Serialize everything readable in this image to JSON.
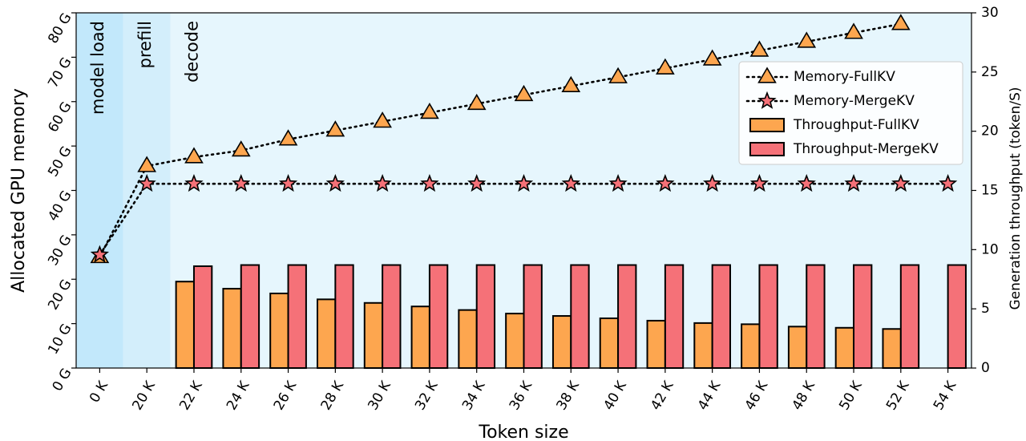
{
  "chart_data": {
    "type": "bar+line",
    "xlabel": "Token size",
    "ylabel_left": "Allocated GPU memory",
    "ylabel_right": "Generation throughput (token/S)",
    "categories": [
      "0 K",
      "20 K",
      "22 K",
      "24 K",
      "26 K",
      "28 K",
      "30 K",
      "32 K",
      "34 K",
      "36 K",
      "38 K",
      "40 K",
      "42 K",
      "44 K",
      "46 K",
      "48 K",
      "50 K",
      "52 K",
      "54 K"
    ],
    "y_left": {
      "range": [
        0,
        80
      ],
      "ticks": [
        0,
        10,
        20,
        30,
        40,
        50,
        60,
        70,
        80
      ],
      "tick_labels": [
        "0 G",
        "10 G",
        "20 G",
        "30 G",
        "40 G",
        "50 G",
        "60 G",
        "70 G",
        "80 G"
      ]
    },
    "y_right": {
      "range": [
        0,
        30
      ],
      "ticks": [
        0,
        5,
        10,
        15,
        20,
        25,
        30
      ],
      "tick_labels": [
        "0",
        "5",
        "10",
        "15",
        "20",
        "25",
        "30"
      ]
    },
    "phases": [
      {
        "label": "model load",
        "from": -0.5,
        "to": 0.5,
        "color": "#c2e8fb"
      },
      {
        "label": "prefill",
        "from": 0.5,
        "to": 1.5,
        "color": "#d3eefb"
      },
      {
        "label": "decode",
        "from": 1.5,
        "to": 18.5,
        "color": "#e6f6fd"
      }
    ],
    "series": [
      {
        "name": "Memory-FullKV",
        "kind": "line",
        "axis": "left",
        "marker": "triangle",
        "color": "#fda64f",
        "values": [
          25,
          45.5,
          47.5,
          49,
          51.5,
          53.5,
          55.5,
          57.5,
          59.5,
          61.5,
          63.5,
          65.5,
          67.5,
          69.5,
          71.5,
          73.5,
          75.5,
          77.5,
          null
        ]
      },
      {
        "name": "Memory-MergeKV",
        "kind": "line",
        "axis": "left",
        "marker": "star",
        "color": "#f57178",
        "values": [
          25.5,
          41.5,
          41.5,
          41.5,
          41.5,
          41.5,
          41.5,
          41.5,
          41.5,
          41.5,
          41.5,
          41.5,
          41.5,
          41.5,
          41.5,
          41.5,
          41.5,
          41.5,
          41.5
        ]
      },
      {
        "name": "Throughput-FullKV",
        "kind": "bar",
        "axis": "right",
        "color": "#fda64f",
        "values": [
          null,
          null,
          7.3,
          6.7,
          6.3,
          5.8,
          5.5,
          5.2,
          4.9,
          4.6,
          4.4,
          4.2,
          4.0,
          3.8,
          3.7,
          3.5,
          3.4,
          3.3,
          null
        ]
      },
      {
        "name": "Throughput-MergeKV",
        "kind": "bar",
        "axis": "right",
        "color": "#f57178",
        "values": [
          null,
          null,
          8.6,
          8.7,
          8.7,
          8.7,
          8.7,
          8.7,
          8.7,
          8.7,
          8.7,
          8.7,
          8.7,
          8.7,
          8.7,
          8.7,
          8.7,
          8.7,
          8.7
        ]
      }
    ],
    "legend": {
      "placement": "right",
      "entries": [
        "Memory-FullKV",
        "Memory-MergeKV",
        "Throughput-FullKV",
        "Throughput-MergeKV"
      ]
    }
  }
}
